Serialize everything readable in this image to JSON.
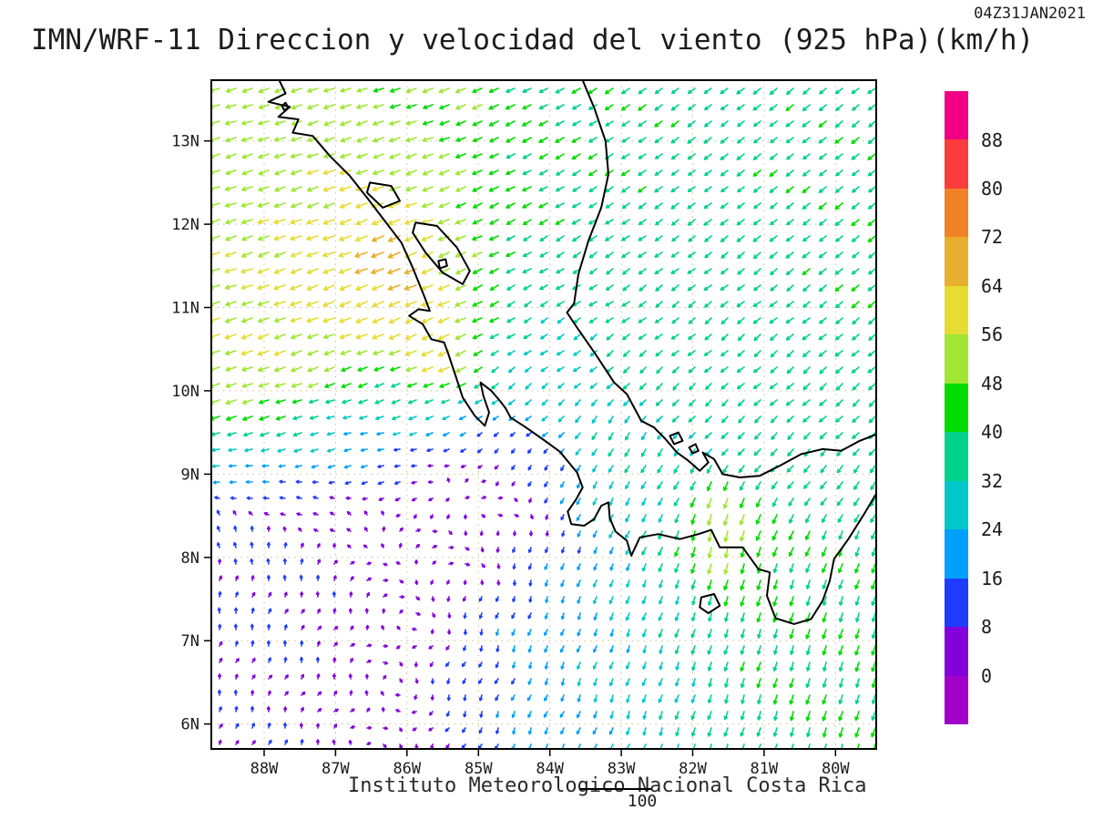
{
  "header": {
    "title": "IMN/WRF-11 Direccion y velocidad del viento (925 hPa)(km/h)",
    "timestamp": "04Z31JAN2021"
  },
  "footer": {
    "institute": "Instituto Meteorologico Nacional Costa Rica",
    "reference_arrow_label": "100"
  },
  "chart_data": {
    "type": "vector_field_map",
    "model": "IMN/WRF-11",
    "variable": "Direccion y velocidad del viento",
    "level": "925 hPa",
    "units": "km/h",
    "valid_time": "04Z31JAN2021",
    "lon_range": [
      -88.74,
      -79.43
    ],
    "lat_range": [
      5.7,
      13.73
    ],
    "lat_tick_values": [
      13,
      12,
      11,
      10,
      9,
      8,
      7,
      6
    ],
    "lat_tick_labels": [
      "13N",
      "12N",
      "11N",
      "10N",
      "9N",
      "8N",
      "7N",
      "6N"
    ],
    "lon_tick_values": [
      -88,
      -87,
      -86,
      -85,
      -84,
      -83,
      -82,
      -81,
      -80
    ],
    "lon_tick_labels": [
      "88W",
      "87W",
      "86W",
      "85W",
      "84W",
      "83W",
      "82W",
      "81W",
      "80W"
    ],
    "grid_spacing_px": 18,
    "reference_speed": 100,
    "colors": {
      "background": "#ffffff",
      "coastline": "#000000",
      "frame": "#000000",
      "gridline": "#c8c08a",
      "text": "#1c1c1c"
    },
    "colorbar": {
      "levels": [
        0,
        8,
        16,
        24,
        32,
        40,
        48,
        56,
        64,
        72,
        80,
        88
      ],
      "colors": [
        "#a000c8",
        "#8200dc",
        "#1e3cff",
        "#00a0ff",
        "#00c8c8",
        "#00d28c",
        "#00dc00",
        "#a0e632",
        "#e6dc32",
        "#e6af2d",
        "#f08228",
        "#fa3c3c",
        "#f00082"
      ]
    },
    "wind_regions": [
      {
        "name": "trades-north",
        "lon": -86.5,
        "lat": 13.3,
        "sigma": 1.6,
        "u": -48,
        "v": -14
      },
      {
        "name": "trades-west",
        "lon": -88.3,
        "lat": 12.5,
        "sigma": 1.5,
        "u": -50,
        "v": -16
      },
      {
        "name": "papagayo-broad",
        "lon": -86.6,
        "lat": 11.4,
        "sigma": 1.0,
        "u": -68,
        "v": -28
      },
      {
        "name": "papagayo-core",
        "lon": -85.8,
        "lat": 10.7,
        "sigma": 0.7,
        "u": -72,
        "v": -32
      },
      {
        "name": "papagayo-max",
        "lon": -85.45,
        "lat": 10.48,
        "sigma": 0.28,
        "u": -84,
        "v": -36
      },
      {
        "name": "jet-streak-north",
        "lon": -86.25,
        "lat": 11.68,
        "sigma": 0.32,
        "u": -80,
        "v": -34
      },
      {
        "name": "offshore-yellow",
        "lon": -87.8,
        "lat": 10.8,
        "sigma": 1.0,
        "u": -55,
        "v": -18
      },
      {
        "name": "nicoya-band",
        "lon": -86.2,
        "lat": 10.0,
        "sigma": 0.7,
        "u": -38,
        "v": -10
      },
      {
        "name": "weak-west-band",
        "lon": -86.5,
        "lat": 9.45,
        "sigma": 0.55,
        "u": -17,
        "v": -3
      },
      {
        "name": "pacific-calm-west",
        "lon": -86.0,
        "lat": 8.8,
        "sigma": 1.0,
        "u": 6,
        "v": 2
      },
      {
        "name": "pacific-calm-east",
        "lon": -84.9,
        "lat": 8.6,
        "sigma": 0.9,
        "u": 7,
        "v": 3
      },
      {
        "name": "sw-inflow",
        "lon": -88.2,
        "lat": 7.4,
        "sigma": 1.1,
        "u": 3,
        "v": 13
      },
      {
        "name": "sw-corner",
        "lon": -88.5,
        "lat": 6.0,
        "sigma": 0.9,
        "u": 3,
        "v": 6
      },
      {
        "name": "south-calm",
        "lon": -86.8,
        "lat": 6.3,
        "sigma": 1.0,
        "u": 4,
        "v": 5
      },
      {
        "name": "south-weak-drift",
        "lon": -85.0,
        "lat": 6.3,
        "sigma": 0.9,
        "u": -4,
        "v": -10
      },
      {
        "name": "south-center-flow",
        "lon": -84.0,
        "lat": 6.8,
        "sigma": 0.9,
        "u": -8,
        "v": -22
      },
      {
        "name": "south-83w-flow",
        "lon": -83.0,
        "lat": 7.0,
        "sigma": 1.0,
        "u": -8,
        "v": -26
      },
      {
        "name": "south-green",
        "lon": -81.0,
        "lat": 6.3,
        "sigma": 1.0,
        "u": -10,
        "v": -38
      },
      {
        "name": "south-east-green",
        "lon": -80.0,
        "lat": 6.8,
        "sigma": 0.9,
        "u": -12,
        "v": -42
      },
      {
        "name": "panama-east",
        "lon": -79.7,
        "lat": 8.0,
        "sigma": 0.8,
        "u": -10,
        "v": -40
      },
      {
        "name": "panama-jet",
        "lon": -81.5,
        "lat": 8.3,
        "sigma": 0.55,
        "u": -10,
        "v": -62
      },
      {
        "name": "panama-jet-core",
        "lon": -81.65,
        "lat": 8.45,
        "sigma": 0.25,
        "u": -12,
        "v": -80
      },
      {
        "name": "isthmus-flow",
        "lon": -82.5,
        "lat": 9.0,
        "sigma": 0.6,
        "u": -12,
        "v": -30
      },
      {
        "name": "limon-south",
        "lon": -83.0,
        "lat": 9.35,
        "sigma": 0.45,
        "u": -12,
        "v": -36
      },
      {
        "name": "caribbean-ne",
        "lon": -80.8,
        "lat": 12.8,
        "sigma": 2.0,
        "u": -30,
        "v": -24
      },
      {
        "name": "caribbean-east",
        "lon": -79.8,
        "lat": 10.8,
        "sigma": 1.3,
        "u": -30,
        "v": -26
      },
      {
        "name": "caribbean-mid",
        "lon": -82.3,
        "lat": 11.3,
        "sigma": 1.5,
        "u": -26,
        "v": -20
      },
      {
        "name": "top-center",
        "lon": -83.8,
        "lat": 12.4,
        "sigma": 1.0,
        "u": -36,
        "v": -20
      },
      {
        "name": "cr-north-teal",
        "lon": -84.3,
        "lat": 10.7,
        "sigma": 0.7,
        "u": -20,
        "v": -14
      },
      {
        "name": "nicoya-gulf-green",
        "lon": -84.6,
        "lat": 10.05,
        "sigma": 0.35,
        "u": -22,
        "v": -28
      },
      {
        "name": "talamanca-teal",
        "lon": -82.0,
        "lat": 9.9,
        "sigma": 0.8,
        "u": -22,
        "v": -20
      },
      {
        "name": "colon-teal",
        "lon": -80.3,
        "lat": 9.3,
        "sigma": 0.7,
        "u": -24,
        "v": -26
      },
      {
        "name": "background",
        "lon": -84.0,
        "lat": 10.0,
        "sigma": 30.0,
        "u": -25,
        "v": -15,
        "amp": 0.08
      }
    ],
    "coastlines": [
      {
        "name": "pacific-coast",
        "closed": false,
        "points": [
          [
            -87.8,
            13.75
          ],
          [
            -87.7,
            13.57
          ],
          [
            -87.94,
            13.47
          ],
          [
            -87.64,
            13.41
          ],
          [
            -87.8,
            13.29
          ],
          [
            -87.52,
            13.26
          ],
          [
            -87.6,
            13.1
          ],
          [
            -87.32,
            13.06
          ],
          [
            -87.08,
            12.82
          ],
          [
            -86.8,
            12.58
          ],
          [
            -86.56,
            12.32
          ],
          [
            -86.32,
            12.05
          ],
          [
            -86.08,
            11.78
          ],
          [
            -85.92,
            11.48
          ],
          [
            -85.75,
            11.12
          ],
          [
            -85.68,
            10.96
          ],
          [
            -85.84,
            10.98
          ],
          [
            -85.97,
            10.9
          ],
          [
            -85.78,
            10.8
          ],
          [
            -85.66,
            10.62
          ],
          [
            -85.48,
            10.58
          ],
          [
            -85.42,
            10.44
          ],
          [
            -85.32,
            10.18
          ],
          [
            -85.22,
            9.92
          ],
          [
            -85.05,
            9.7
          ],
          [
            -84.91,
            9.58
          ],
          [
            -84.85,
            9.74
          ],
          [
            -84.93,
            9.94
          ],
          [
            -84.97,
            10.1
          ],
          [
            -84.82,
            10.0
          ],
          [
            -84.7,
            9.88
          ],
          [
            -84.62,
            9.79
          ],
          [
            -84.55,
            9.68
          ],
          [
            -84.35,
            9.57
          ],
          [
            -84.1,
            9.42
          ],
          [
            -83.86,
            9.27
          ],
          [
            -83.62,
            9.02
          ],
          [
            -83.54,
            8.84
          ],
          [
            -83.63,
            8.7
          ],
          [
            -83.75,
            8.55
          ],
          [
            -83.7,
            8.4
          ],
          [
            -83.52,
            8.38
          ],
          [
            -83.38,
            8.46
          ],
          [
            -83.28,
            8.62
          ],
          [
            -83.18,
            8.66
          ],
          [
            -83.16,
            8.47
          ],
          [
            -83.08,
            8.31
          ],
          [
            -82.92,
            8.2
          ],
          [
            -82.86,
            8.02
          ],
          [
            -82.74,
            8.24
          ],
          [
            -82.48,
            8.28
          ],
          [
            -82.18,
            8.22
          ],
          [
            -81.92,
            8.28
          ],
          [
            -81.74,
            8.33
          ],
          [
            -81.62,
            8.12
          ],
          [
            -81.3,
            8.12
          ],
          [
            -81.08,
            7.86
          ],
          [
            -80.92,
            7.82
          ],
          [
            -80.96,
            7.54
          ],
          [
            -80.84,
            7.27
          ],
          [
            -80.58,
            7.2
          ],
          [
            -80.34,
            7.26
          ],
          [
            -80.18,
            7.48
          ],
          [
            -80.08,
            7.72
          ],
          [
            -80.02,
            7.98
          ],
          [
            -79.82,
            8.22
          ],
          [
            -79.6,
            8.52
          ],
          [
            -79.42,
            8.78
          ]
        ]
      },
      {
        "name": "caribbean-coast",
        "closed": false,
        "points": [
          [
            -83.55,
            13.75
          ],
          [
            -83.38,
            13.4
          ],
          [
            -83.22,
            13.0
          ],
          [
            -83.18,
            12.6
          ],
          [
            -83.28,
            12.2
          ],
          [
            -83.46,
            11.8
          ],
          [
            -83.6,
            11.4
          ],
          [
            -83.66,
            11.05
          ],
          [
            -83.76,
            10.94
          ],
          [
            -83.62,
            10.76
          ],
          [
            -83.36,
            10.44
          ],
          [
            -83.1,
            10.1
          ],
          [
            -82.92,
            9.96
          ],
          [
            -82.72,
            9.64
          ],
          [
            -82.54,
            9.56
          ],
          [
            -82.38,
            9.42
          ],
          [
            -82.22,
            9.26
          ],
          [
            -82.06,
            9.16
          ],
          [
            -81.9,
            9.04
          ],
          [
            -81.78,
            9.14
          ],
          [
            -81.86,
            9.26
          ],
          [
            -81.7,
            9.18
          ],
          [
            -81.58,
            9.0
          ],
          [
            -81.34,
            8.96
          ],
          [
            -81.06,
            8.98
          ],
          [
            -80.78,
            9.1
          ],
          [
            -80.48,
            9.24
          ],
          [
            -80.18,
            9.3
          ],
          [
            -79.92,
            9.28
          ],
          [
            -79.66,
            9.4
          ],
          [
            -79.42,
            9.48
          ]
        ]
      },
      {
        "name": "lake-nicaragua",
        "closed": true,
        "points": [
          [
            -85.88,
            12.02
          ],
          [
            -85.58,
            11.98
          ],
          [
            -85.3,
            11.72
          ],
          [
            -85.12,
            11.44
          ],
          [
            -85.22,
            11.28
          ],
          [
            -85.5,
            11.42
          ],
          [
            -85.74,
            11.66
          ],
          [
            -85.92,
            11.9
          ]
        ]
      },
      {
        "name": "ometepe-island",
        "closed": true,
        "points": [
          [
            -85.56,
            11.56
          ],
          [
            -85.46,
            11.58
          ],
          [
            -85.44,
            11.5
          ],
          [
            -85.54,
            11.47
          ]
        ]
      },
      {
        "name": "lake-managua",
        "closed": true,
        "points": [
          [
            -86.52,
            12.5
          ],
          [
            -86.22,
            12.46
          ],
          [
            -86.1,
            12.28
          ],
          [
            -86.34,
            12.2
          ],
          [
            -86.56,
            12.38
          ]
        ]
      },
      {
        "name": "coiba-island",
        "closed": true,
        "points": [
          [
            -81.88,
            7.52
          ],
          [
            -81.7,
            7.56
          ],
          [
            -81.62,
            7.42
          ],
          [
            -81.78,
            7.33
          ],
          [
            -81.9,
            7.4
          ]
        ]
      },
      {
        "name": "bocas-island-1",
        "closed": true,
        "points": [
          [
            -82.32,
            9.46
          ],
          [
            -82.2,
            9.5
          ],
          [
            -82.14,
            9.4
          ],
          [
            -82.26,
            9.36
          ]
        ]
      },
      {
        "name": "bocas-island-2",
        "closed": true,
        "points": [
          [
            -82.05,
            9.32
          ],
          [
            -81.96,
            9.36
          ],
          [
            -81.92,
            9.28
          ],
          [
            -82.0,
            9.25
          ]
        ]
      },
      {
        "name": "fonseca-islet",
        "closed": true,
        "points": [
          [
            -87.75,
            13.42
          ],
          [
            -87.7,
            13.46
          ],
          [
            -87.66,
            13.4
          ],
          [
            -87.72,
            13.37
          ]
        ]
      }
    ]
  }
}
